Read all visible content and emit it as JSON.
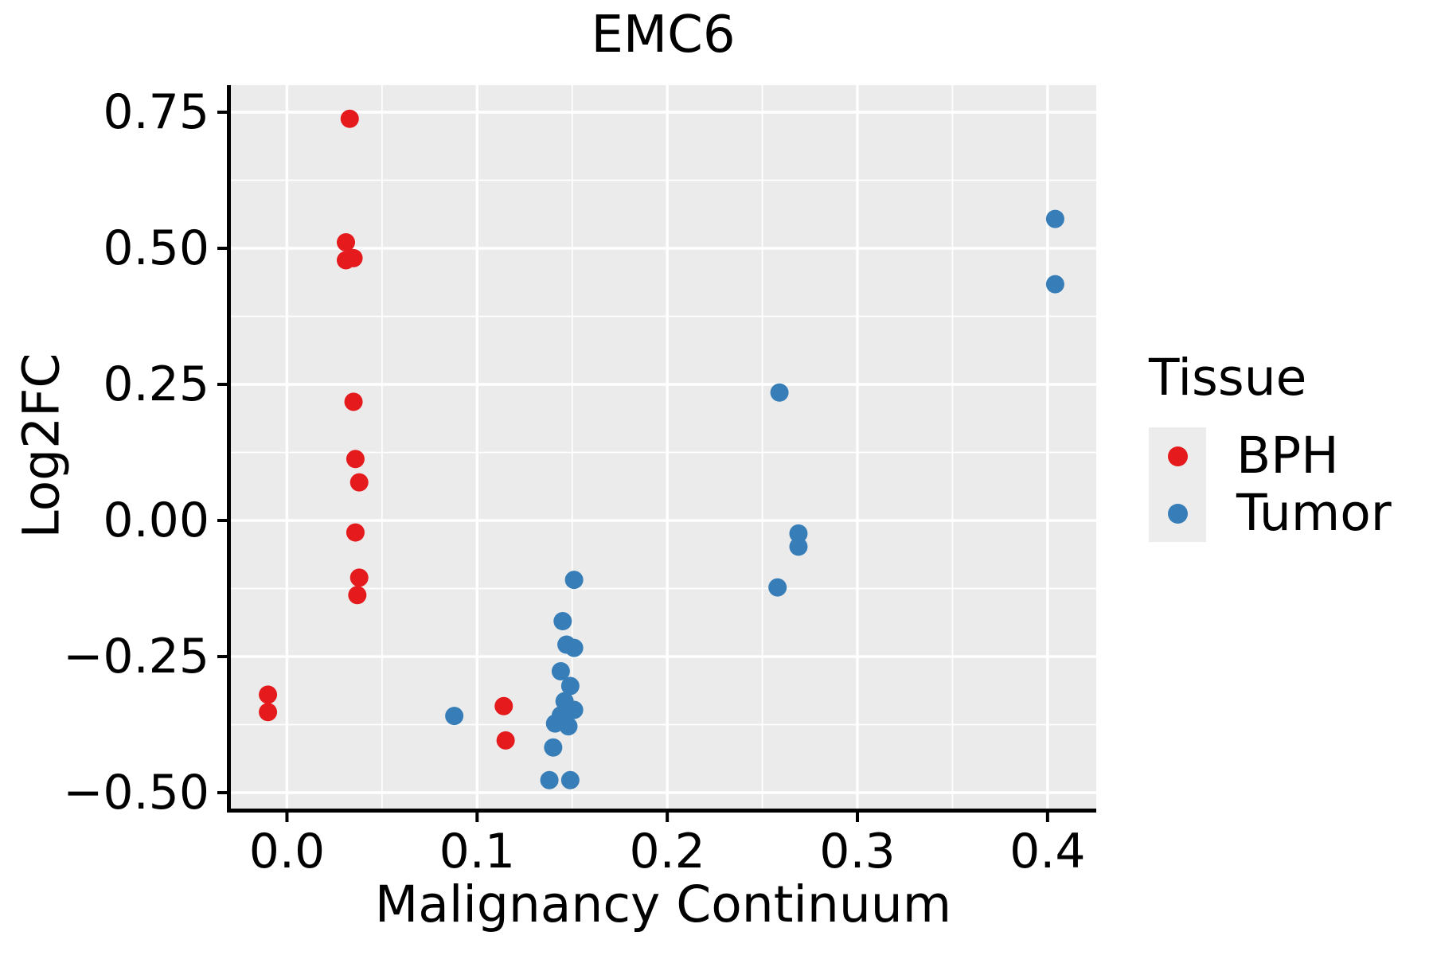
{
  "title": "EMC6",
  "chart_data": {
    "type": "scatter",
    "title": "EMC6",
    "xlabel": "Malignancy Continuum",
    "ylabel": "Log2FC",
    "xlim": [
      -0.0295,
      0.4256
    ],
    "ylim": [
      -0.5292,
      0.7997
    ],
    "grid": "on",
    "panel_background": "#EBEBEB",
    "grid_color": "#FFFFFF",
    "x_ticks": [
      {
        "v": 0.0,
        "label": "0.0"
      },
      {
        "v": 0.1,
        "label": "0.1"
      },
      {
        "v": 0.2,
        "label": "0.2"
      },
      {
        "v": 0.3,
        "label": "0.3"
      },
      {
        "v": 0.4,
        "label": "0.4"
      }
    ],
    "y_ticks": [
      {
        "v": 0.75,
        "label": "0.75"
      },
      {
        "v": 0.5,
        "label": "0.50"
      },
      {
        "v": 0.25,
        "label": "0.25"
      },
      {
        "v": 0.0,
        "label": "0.00"
      },
      {
        "v": -0.25,
        "label": "-0.25"
      },
      {
        "v": -0.5,
        "label": "-0.50"
      }
    ],
    "x_minor": [
      0.05,
      0.15,
      0.25,
      0.35
    ],
    "y_minor": [
      0.625,
      0.375,
      0.125,
      -0.125,
      -0.375
    ],
    "legend_title": "Tissue",
    "legend_position": "right",
    "series": [
      {
        "name": "BPH",
        "color": "#E41A1C",
        "points": [
          [
            0.033,
            0.738
          ],
          [
            0.031,
            0.511
          ],
          [
            0.031,
            0.478
          ],
          [
            0.035,
            0.482
          ],
          [
            0.035,
            0.218
          ],
          [
            0.036,
            0.113
          ],
          [
            0.038,
            0.07
          ],
          [
            0.036,
            -0.022
          ],
          [
            0.038,
            -0.105
          ],
          [
            0.037,
            -0.137
          ],
          [
            -0.01,
            -0.32
          ],
          [
            -0.01,
            -0.352
          ],
          [
            0.114,
            -0.341
          ],
          [
            0.115,
            -0.404
          ]
        ]
      },
      {
        "name": "Tumor",
        "color": "#377EB8",
        "points": [
          [
            0.404,
            0.554
          ],
          [
            0.404,
            0.434
          ],
          [
            0.259,
            0.235
          ],
          [
            0.269,
            -0.024
          ],
          [
            0.269,
            -0.048
          ],
          [
            0.258,
            -0.123
          ],
          [
            0.151,
            -0.109
          ],
          [
            0.145,
            -0.185
          ],
          [
            0.147,
            -0.228
          ],
          [
            0.151,
            -0.234
          ],
          [
            0.144,
            -0.277
          ],
          [
            0.149,
            -0.304
          ],
          [
            0.146,
            -0.332
          ],
          [
            0.151,
            -0.348
          ],
          [
            0.144,
            -0.358
          ],
          [
            0.141,
            -0.373
          ],
          [
            0.148,
            -0.378
          ],
          [
            0.14,
            -0.417
          ],
          [
            0.088,
            -0.359
          ],
          [
            0.138,
            -0.477
          ],
          [
            0.149,
            -0.477
          ]
        ]
      }
    ]
  },
  "style": {
    "panel_bg": "#EBEBEB",
    "grid": "#FFFFFF",
    "key_bg": "#ECECEC",
    "spine": "#000000",
    "text": "#000000",
    "point_radius": 11.5
  }
}
